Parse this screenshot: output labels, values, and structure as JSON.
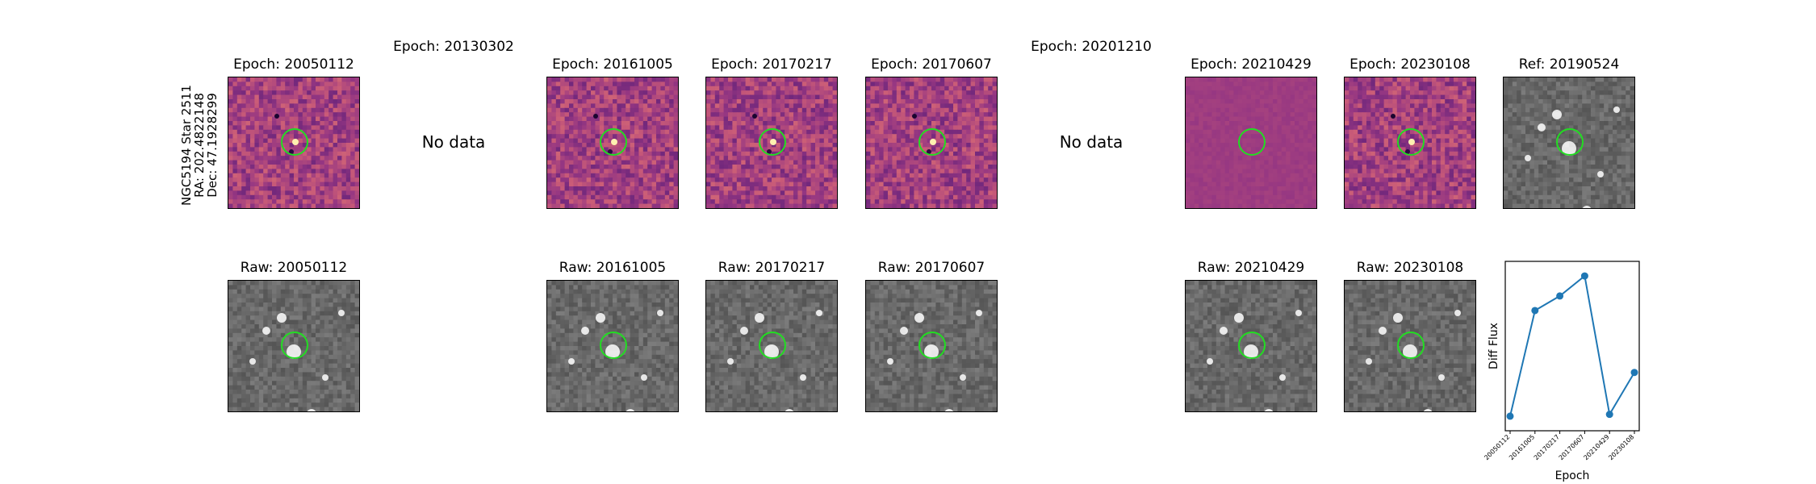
{
  "star_info": {
    "name": "NGC5194 Star 2511",
    "ra": "RA: 202.4822148",
    "dec": "Dec: 47.1928299"
  },
  "top_row": [
    {
      "title": "Epoch: 20050112",
      "kind": "diff"
    },
    {
      "title": "Epoch: 20130302",
      "kind": "none",
      "note": "No data"
    },
    {
      "title": "Epoch: 20161005",
      "kind": "diff"
    },
    {
      "title": "Epoch: 20170217",
      "kind": "diff"
    },
    {
      "title": "Epoch: 20170607",
      "kind": "diff"
    },
    {
      "title": "Epoch: 20201210",
      "kind": "none",
      "note": "No data"
    },
    {
      "title": "Epoch: 20210429",
      "kind": "diff"
    },
    {
      "title": "Epoch: 20230108",
      "kind": "diff"
    },
    {
      "title": "Ref: 20190524",
      "kind": "raw"
    }
  ],
  "bottom_row": [
    {
      "title": "Raw: 20050112"
    },
    {
      "title": "Raw: 20161005"
    },
    {
      "title": "Raw: 20170217"
    },
    {
      "title": "Raw: 20170607"
    },
    {
      "title": "Raw: 20210429"
    },
    {
      "title": "Raw: 20230108"
    }
  ],
  "colors": {
    "circle": "#22dd22",
    "line": "#1f77b4",
    "diff_base": "#a8407e",
    "raw_base": "#6e6e6e"
  },
  "chart_data": {
    "type": "line",
    "xlabel": "Epoch",
    "ylabel": "Diff Flux",
    "x": [
      "20050112",
      "20161005",
      "20170217",
      "20170607",
      "20210429",
      "20230108"
    ],
    "series": [
      {
        "values": [
          0.0,
          0.58,
          0.66,
          0.77,
          0.01,
          0.24
        ]
      }
    ],
    "ylim": [
      -0.08,
      0.85
    ],
    "grid": false
  }
}
